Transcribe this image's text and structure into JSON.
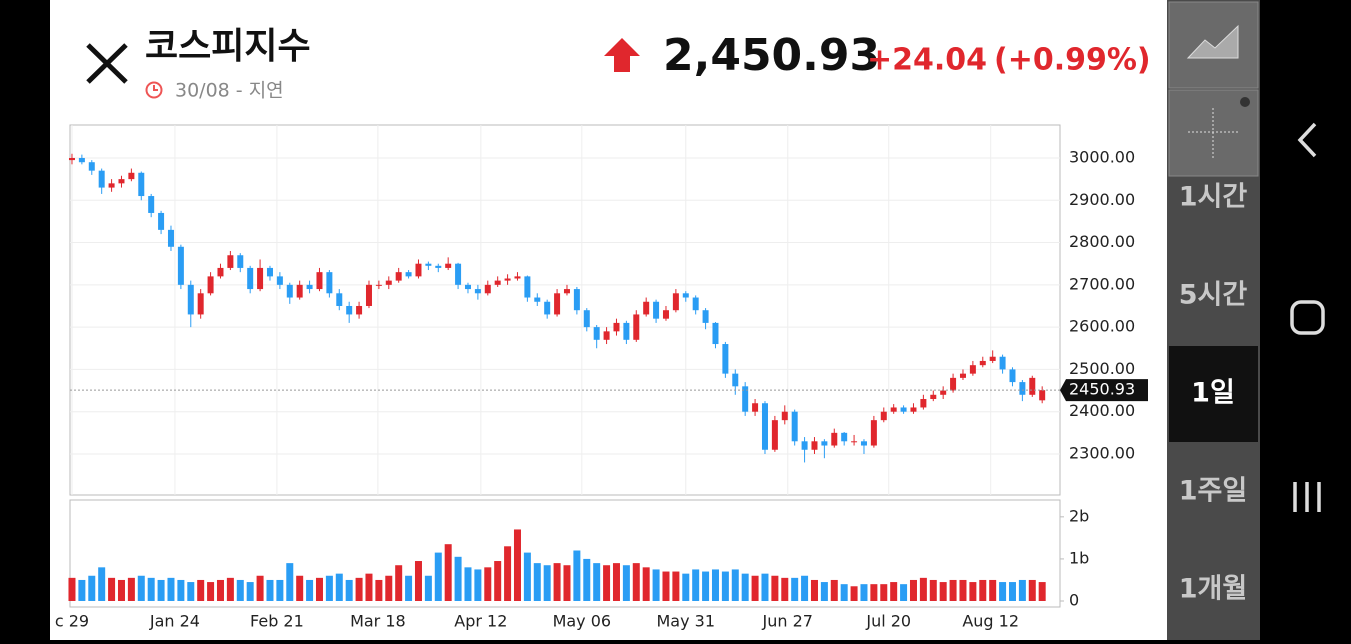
{
  "header": {
    "title": "코스피지수",
    "date": "30/08 - 지연",
    "price": "2,450.93",
    "change": "+24.04",
    "change_pct": "(+0.99%)"
  },
  "intervals": [
    "1시간",
    "5시간",
    "1일",
    "1주일",
    "1개월"
  ],
  "chart_data": {
    "type": "candlestick",
    "up_color": "#e0272d",
    "down_color": "#2a9df4",
    "grid": true,
    "xlim": [
      -0.2,
      99.8
    ],
    "ylim": [
      2203,
      3078
    ],
    "xticks": [
      {
        "value": 0,
        "label": "c 29"
      },
      {
        "value": 10.4,
        "label": "Jan 24"
      },
      {
        "value": 20.7,
        "label": "Feb 21"
      },
      {
        "value": 30.9,
        "label": "Mar 18"
      },
      {
        "value": 41.3,
        "label": "Apr 12"
      },
      {
        "value": 51.5,
        "label": "May 06"
      },
      {
        "value": 62,
        "label": "May 31"
      },
      {
        "value": 72.3,
        "label": "Jun 27"
      },
      {
        "value": 82.5,
        "label": "Jul 20"
      },
      {
        "value": 92.8,
        "label": "Aug 12"
      }
    ],
    "yticks": [
      {
        "value": 2300,
        "label": "2300.00"
      },
      {
        "value": 2400,
        "label": "2400.00"
      },
      {
        "value": 2500,
        "label": "2500.00"
      },
      {
        "value": 2600,
        "label": "2600.00"
      },
      {
        "value": 2700,
        "label": "2700.00"
      },
      {
        "value": 2800,
        "label": "2800.00"
      },
      {
        "value": 2900,
        "label": "2900.00"
      },
      {
        "value": 3000,
        "label": "3000.00"
      }
    ],
    "y2lim": [
      0,
      2.4
    ],
    "y2ticks": [
      0,
      {
        "value": 1,
        "label": "1b"
      },
      {
        "value": 2,
        "label": "2b"
      }
    ],
    "open": [
      2995,
      3000,
      2990,
      2970,
      2930,
      2940,
      2950,
      2965,
      2910,
      2870,
      2830,
      2790,
      2700,
      2630,
      2680,
      2720,
      2740,
      2770,
      2740,
      2690,
      2740,
      2720,
      2700,
      2670,
      2700,
      2690,
      2730,
      2680,
      2650,
      2630,
      2650,
      2700,
      2700,
      2710,
      2730,
      2720,
      2750,
      2745,
      2740,
      2750,
      2700,
      2690,
      2680,
      2700,
      2710,
      2715,
      2720,
      2670,
      2660,
      2630,
      2680,
      2690,
      2640,
      2600,
      2570,
      2590,
      2610,
      2570,
      2630,
      2660,
      2620,
      2640,
      2680,
      2670,
      2640,
      2610,
      2560,
      2490,
      2460,
      2400,
      2420,
      2310,
      2380,
      2400,
      2330,
      2310,
      2330,
      2320,
      2350,
      2330,
      2330,
      2320,
      2380,
      2400,
      2410,
      2400,
      2410,
      2430,
      2440,
      2450,
      2480,
      2490,
      2510,
      2520,
      2530,
      2500,
      2470,
      2440,
      2426.89
    ],
    "high": [
      3010,
      3008,
      2995,
      2975,
      2950,
      2958,
      2975,
      2968,
      2915,
      2875,
      2840,
      2795,
      2710,
      2690,
      2730,
      2750,
      2780,
      2775,
      2745,
      2760,
      2745,
      2730,
      2705,
      2710,
      2710,
      2740,
      2735,
      2690,
      2660,
      2660,
      2710,
      2710,
      2720,
      2740,
      2735,
      2760,
      2755,
      2750,
      2765,
      2752,
      2705,
      2700,
      2710,
      2720,
      2725,
      2730,
      2722,
      2680,
      2665,
      2690,
      2700,
      2695,
      2645,
      2605,
      2600,
      2620,
      2615,
      2640,
      2670,
      2665,
      2650,
      2690,
      2685,
      2675,
      2645,
      2612,
      2565,
      2500,
      2470,
      2430,
      2425,
      2390,
      2415,
      2405,
      2340,
      2340,
      2335,
      2360,
      2352,
      2345,
      2335,
      2390,
      2410,
      2418,
      2415,
      2420,
      2440,
      2450,
      2460,
      2490,
      2500,
      2520,
      2530,
      2545,
      2535,
      2505,
      2475,
      2485,
      2460
    ],
    "low": [
      2985,
      2985,
      2960,
      2915,
      2920,
      2930,
      2945,
      2900,
      2860,
      2820,
      2780,
      2690,
      2600,
      2620,
      2675,
      2715,
      2735,
      2730,
      2680,
      2685,
      2710,
      2690,
      2655,
      2665,
      2680,
      2685,
      2670,
      2640,
      2610,
      2620,
      2645,
      2690,
      2690,
      2705,
      2715,
      2715,
      2735,
      2730,
      2735,
      2690,
      2680,
      2665,
      2675,
      2695,
      2700,
      2710,
      2660,
      2650,
      2620,
      2625,
      2675,
      2630,
      2590,
      2550,
      2560,
      2580,
      2560,
      2565,
      2625,
      2610,
      2615,
      2635,
      2660,
      2630,
      2595,
      2550,
      2480,
      2440,
      2390,
      2390,
      2300,
      2305,
      2370,
      2320,
      2280,
      2300,
      2290,
      2315,
      2320,
      2320,
      2300,
      2315,
      2375,
      2395,
      2395,
      2395,
      2405,
      2425,
      2430,
      2445,
      2475,
      2485,
      2505,
      2515,
      2490,
      2460,
      2425,
      2435,
      2420
    ],
    "close": [
      3000,
      2990,
      2970,
      2930,
      2940,
      2950,
      2965,
      2910,
      2870,
      2830,
      2790,
      2700,
      2630,
      2680,
      2720,
      2740,
      2770,
      2740,
      2690,
      2740,
      2720,
      2700,
      2670,
      2700,
      2690,
      2730,
      2680,
      2650,
      2630,
      2650,
      2700,
      2700,
      2710,
      2730,
      2720,
      2750,
      2745,
      2740,
      2750,
      2700,
      2690,
      2680,
      2700,
      2710,
      2715,
      2720,
      2670,
      2660,
      2630,
      2680,
      2690,
      2640,
      2600,
      2570,
      2590,
      2610,
      2570,
      2630,
      2660,
      2620,
      2640,
      2680,
      2670,
      2640,
      2610,
      2560,
      2490,
      2460,
      2400,
      2420,
      2310,
      2380,
      2400,
      2330,
      2310,
      2330,
      2320,
      2350,
      2330,
      2330,
      2320,
      2380,
      2400,
      2410,
      2400,
      2410,
      2430,
      2440,
      2450,
      2480,
      2490,
      2510,
      2520,
      2530,
      2500,
      2470,
      2440,
      2480,
      2450.93
    ],
    "volume": [
      0.55,
      0.5,
      0.6,
      0.8,
      0.55,
      0.5,
      0.55,
      0.6,
      0.55,
      0.5,
      0.55,
      0.5,
      0.45,
      0.5,
      0.45,
      0.5,
      0.55,
      0.5,
      0.45,
      0.6,
      0.5,
      0.5,
      0.9,
      0.6,
      0.5,
      0.55,
      0.6,
      0.65,
      0.5,
      0.55,
      0.65,
      0.5,
      0.6,
      0.85,
      0.6,
      0.95,
      0.6,
      1.15,
      1.35,
      1.05,
      0.8,
      0.75,
      0.8,
      0.95,
      1.3,
      1.7,
      1.15,
      0.9,
      0.85,
      0.9,
      0.85,
      1.2,
      1.0,
      0.9,
      0.85,
      0.9,
      0.85,
      0.9,
      0.8,
      0.75,
      0.7,
      0.7,
      0.65,
      0.75,
      0.7,
      0.75,
      0.7,
      0.75,
      0.65,
      0.6,
      0.65,
      0.6,
      0.55,
      0.55,
      0.6,
      0.5,
      0.45,
      0.5,
      0.4,
      0.35,
      0.4,
      0.4,
      0.4,
      0.45,
      0.4,
      0.5,
      0.55,
      0.5,
      0.45,
      0.5,
      0.5,
      0.45,
      0.5,
      0.5,
      0.45,
      0.45,
      0.5,
      0.5,
      0.45
    ]
  }
}
